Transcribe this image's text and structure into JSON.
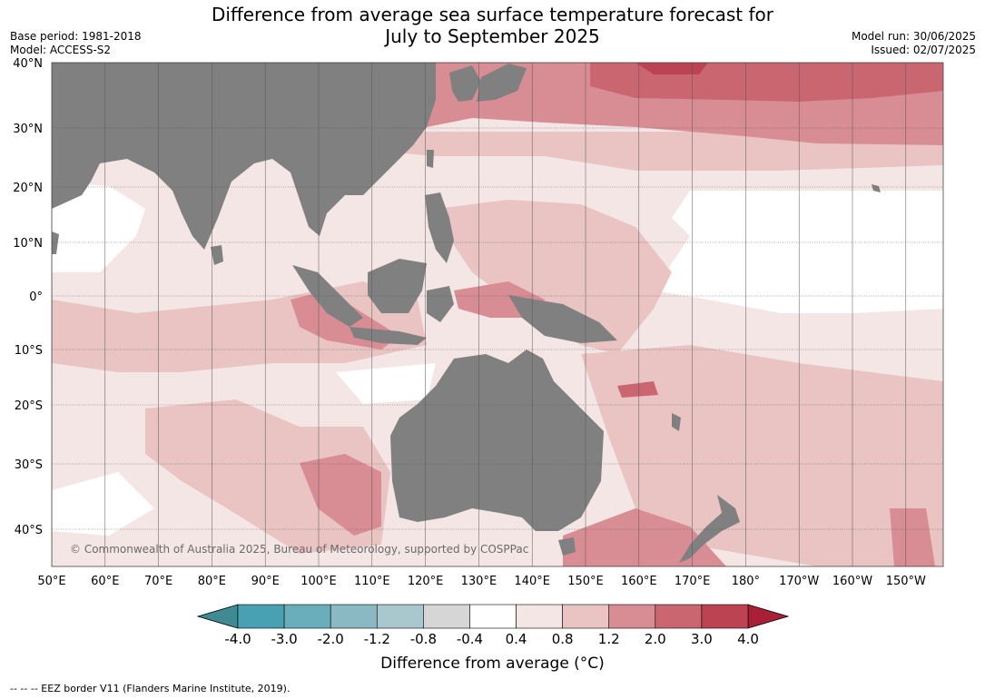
{
  "title_line1": "Difference from average sea surface temperature forecast for",
  "title_line2": "July to September 2025",
  "meta_left": [
    "Base period: 1981-2018",
    "Model: ACCESS-S2"
  ],
  "meta_right": [
    "Model run: 30/06/2025",
    "Issued: 02/07/2025"
  ],
  "lat_labels": [
    "40°N",
    "30°N",
    "20°N",
    "10°N",
    "0°",
    "10°S",
    "20°S",
    "30°S",
    "40°S"
  ],
  "lon_labels": [
    "50°E",
    "60°E",
    "70°E",
    "80°E",
    "90°E",
    "100°E",
    "110°E",
    "120°E",
    "130°E",
    "140°E",
    "150°E",
    "160°E",
    "170°E",
    "180°",
    "170°W",
    "160°W",
    "150°W"
  ],
  "copyright": "© Commonwealth of Australia 2025, Bureau of Meteorology, supported by COSPPac",
  "legend": {
    "ticks": [
      "-4.0",
      "-3.0",
      "-2.0",
      "-1.2",
      "-0.8",
      "-0.4",
      "0.4",
      "0.8",
      "1.2",
      "2.0",
      "3.0",
      "4.0"
    ],
    "colors": [
      "#48a1b2",
      "#6aaebb",
      "#8ab9c4",
      "#a9c8cd",
      "#d6d6d6",
      "#ffffff",
      "#f5e6e6",
      "#e9c4c2",
      "#d88c94",
      "#c96670",
      "#bc4352"
    ],
    "under_color": "#3f8a93",
    "over_color": "#a81f36",
    "title": "Difference from average (°C)"
  },
  "colors": {
    "land": "#808080",
    "ocean_base": "#f5e6e6"
  },
  "footnote": "-- -- -- EEZ border V11 (Flanders Marine Institute, 2019)."
}
